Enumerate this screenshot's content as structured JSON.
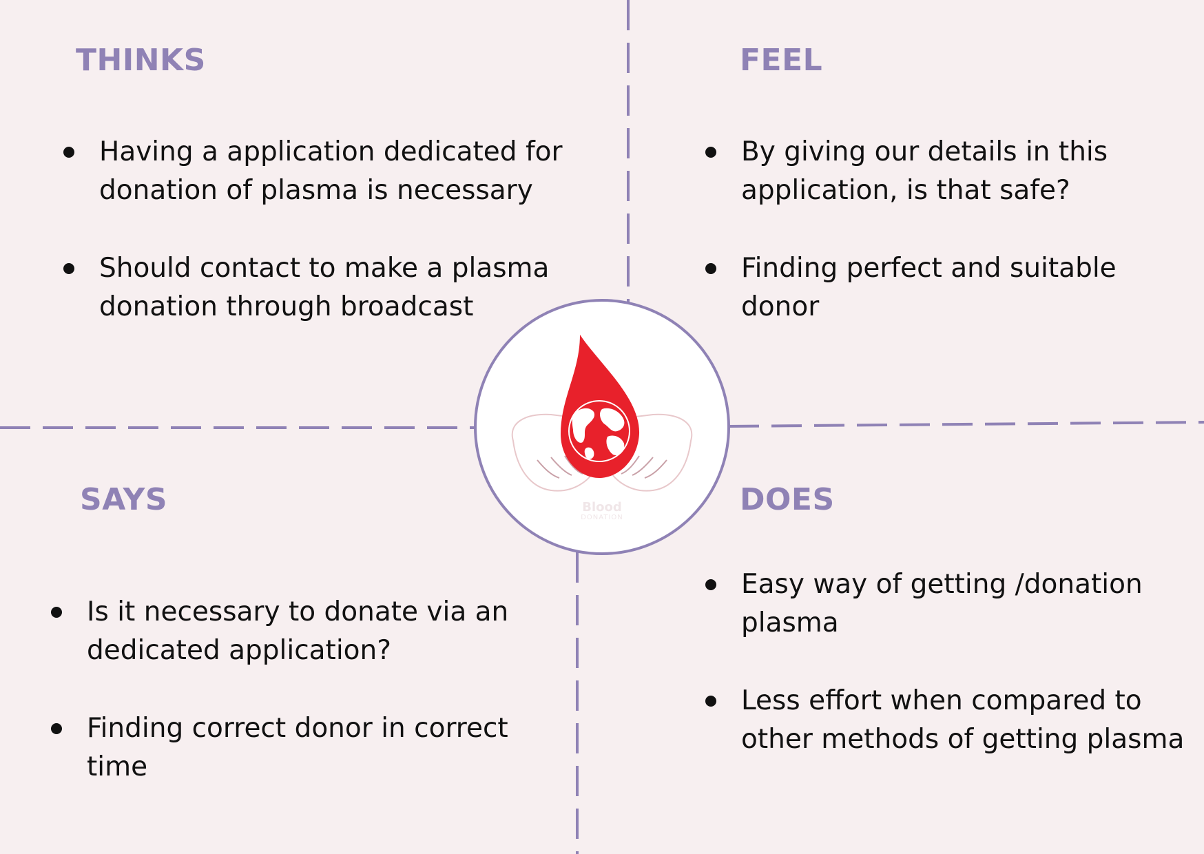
{
  "quadrants": {
    "thinks": {
      "title": "THINKS",
      "items": [
        "Having a application dedicated for donation of plasma is necessary",
        "Should contact to make a plasma donation through broadcast"
      ]
    },
    "feel": {
      "title": "FEEL",
      "items": [
        "By giving our details in this application, is that safe?",
        "Finding perfect and suitable donor"
      ]
    },
    "says": {
      "title": "SAYS",
      "items": [
        "Is it necessary to donate via an dedicated application?",
        "Finding correct donor in correct time"
      ]
    },
    "does": {
      "title": "DOES",
      "items": [
        "Easy way of getting /donation plasma",
        "Less effort when compared to other methods of getting plasma"
      ]
    }
  },
  "logo": {
    "text_line1": "Blood",
    "text_line2": "DONATION",
    "icon": "blood-drop-globe-hands-icon"
  },
  "colors": {
    "background": "#f7eff0",
    "accent": "#8f82b5",
    "divider": "#8f82b5",
    "drop": "#e8212b",
    "text": "#111111"
  }
}
